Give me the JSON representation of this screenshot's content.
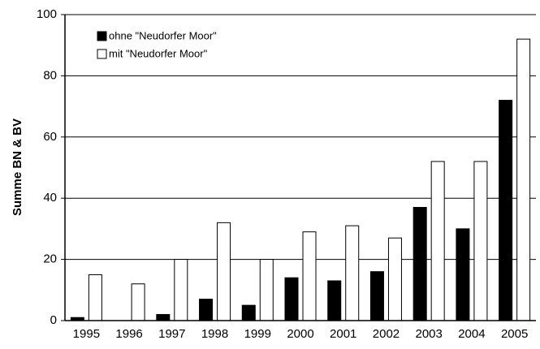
{
  "chart_data": {
    "type": "bar",
    "ylabel": "Summe BN & BV",
    "categories": [
      "1995",
      "1996",
      "1997",
      "1998",
      "1999",
      "2000",
      "2001",
      "2002",
      "2003",
      "2004",
      "2005"
    ],
    "series": [
      {
        "name": "ohne \"Neudorfer Moor\"",
        "color": "#000000",
        "values": [
          1,
          0,
          2,
          7,
          5,
          14,
          13,
          16,
          37,
          30,
          72
        ]
      },
      {
        "name": "mit \"Neudorfer Moor\"",
        "color": "#ffffff",
        "values": [
          15,
          12,
          20,
          32,
          20,
          29,
          31,
          27,
          52,
          52,
          92
        ]
      }
    ],
    "ylim": [
      0,
      100
    ],
    "yticks": [
      0,
      20,
      40,
      60,
      80,
      100
    ],
    "grid": true,
    "legend": "top-left"
  }
}
